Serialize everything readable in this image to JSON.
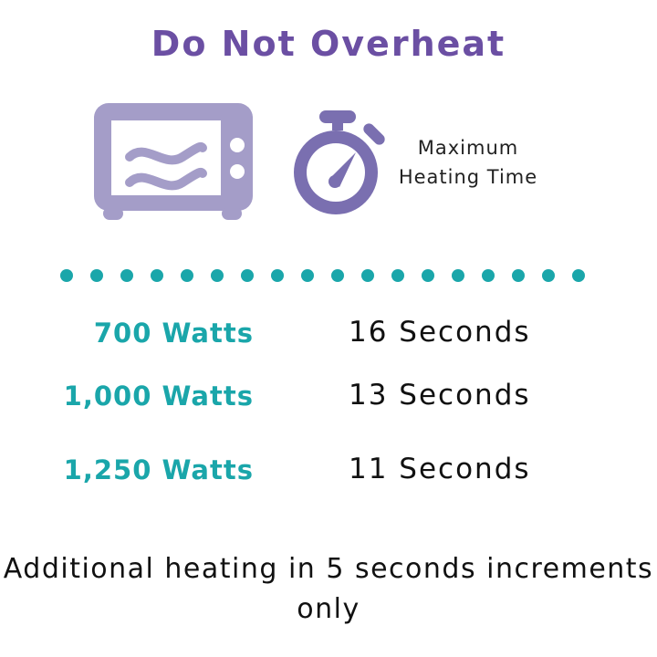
{
  "title": "Do Not Overheat",
  "icons": {
    "microwave": "microwave-icon",
    "timer": "stopwatch-icon"
  },
  "heading_label": "Maximum Heating Time",
  "rows": [
    {
      "watts": "700 Watts",
      "time": "16 Seconds"
    },
    {
      "watts": "1,000 Watts",
      "time": "13 Seconds"
    },
    {
      "watts": "1,250 Watts",
      "time": "11 Seconds"
    }
  ],
  "note": "Additional heating in 5 seconds increments only",
  "colors": {
    "title": "#6b4fa3",
    "microwave": "#a49dc8",
    "stopwatch": "#7a6fb0",
    "accent": "#1aa6aa"
  }
}
